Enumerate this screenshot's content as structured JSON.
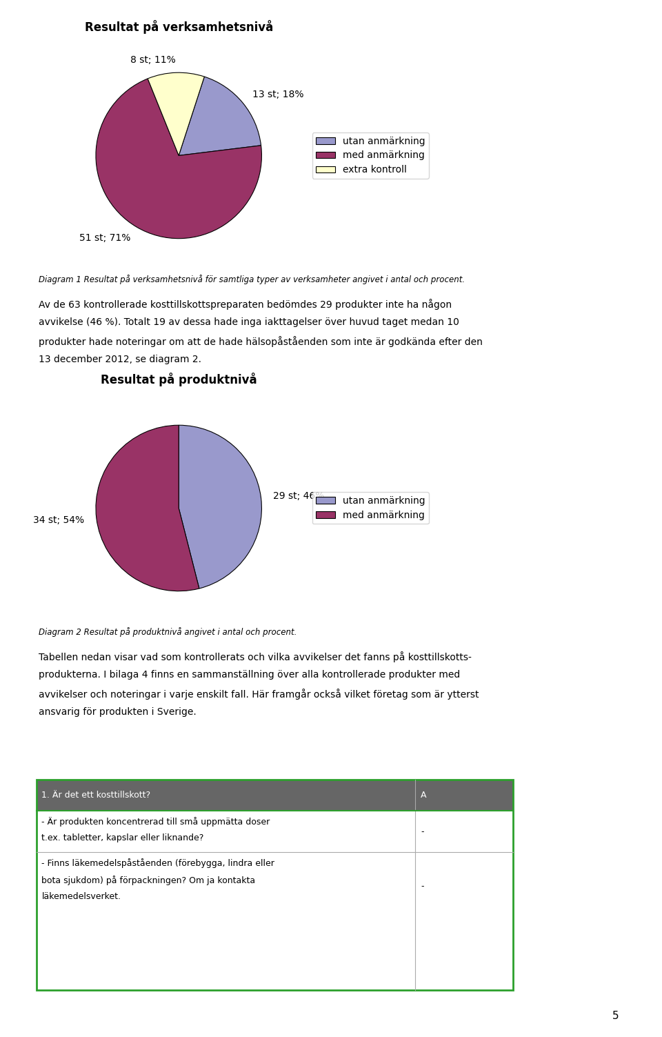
{
  "chart_data": [
    {
      "type": "pie",
      "title": "Resultat på verksamhetsnivå",
      "categories": [
        "utan anmärkning",
        "med anmärkning",
        "extra kontroll"
      ],
      "values": [
        13,
        51,
        8
      ],
      "value_labels": [
        "13 st; 18%",
        "51 st; 71%",
        "8 st; 11%"
      ],
      "colors": [
        "#9999cc",
        "#993366",
        "#ffffcc"
      ],
      "legend": "center left",
      "caption": "Diagram 1 Resultat på verksamhetsnivå för samtliga typer av verksamheter angivet i antal och procent."
    },
    {
      "type": "pie",
      "title": "Resultat på produktnivå",
      "categories": [
        "utan anmärkning",
        "med anmärkning"
      ],
      "values": [
        29,
        34
      ],
      "value_labels": [
        "29 st; 46%",
        "34 st; 54%"
      ],
      "colors": [
        "#9999cc",
        "#993366"
      ],
      "legend": "center left",
      "caption": "Diagram 2 Resultat på produktnivå angivet i antal och procent."
    }
  ],
  "body_text": [
    [
      "Av de 63 kontrollerade kosttillskottspreparaten bedömdes 29 produkter inte ha någon",
      "avvikelse (46 %). Totalt 19 av dessa hade inga iakttagelser över huvud taget medan 10",
      "produkter hade noteringar om att de hade hälsopåståenden som inte är godkända efter den",
      "13 december 2012, se diagram 2."
    ],
    [
      "Tabellen nedan visar vad som kontrollerats och vilka avvikelser det fanns på kosttillskotts-",
      "produkterna. I bilaga 4 finns en sammanställning över alla kontrollerade produkter med",
      "avvikelser och noteringar i varje enskilt fall. Här framgår också vilket företag som är ytterst",
      "ansvarig för produkten i Sverige."
    ]
  ],
  "table": {
    "header": [
      "1. Är det ett kosttillskott?",
      "A"
    ],
    "rows": [
      [
        [
          "- Är produkten koncentrerad till små uppmätta doser",
          "t.ex. tabletter, kapslar eller liknande?"
        ],
        "-"
      ],
      [
        [
          "- Finns läkemedelspåståenden (förebygga, lindra eller",
          "bota sjukdom) på förpackningen? Om ja kontakta",
          "läkemedelsverket."
        ],
        "-"
      ]
    ]
  },
  "page_number": "5"
}
